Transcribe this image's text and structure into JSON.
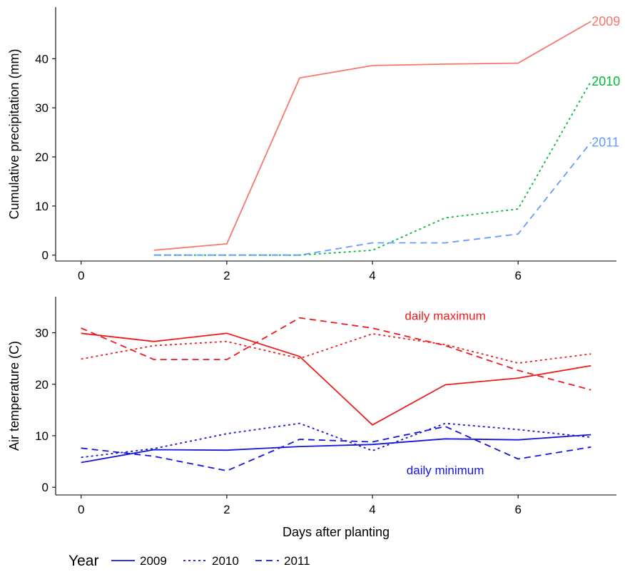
{
  "colors": {
    "precip_2009": "#F8766D",
    "precip_2010": "#00BA38",
    "precip_2011": "#619CFF",
    "temp_max": "#ED1C1C",
    "temp_min": "#1515DD",
    "axis": "#000000",
    "text": "#000000"
  },
  "legend": {
    "title": "Year",
    "entries": [
      {
        "label": "2009",
        "linetype": "solid"
      },
      {
        "label": "2010",
        "linetype": "dotted"
      },
      {
        "label": "2011",
        "linetype": "dashed"
      }
    ]
  },
  "chart_data": [
    {
      "type": "line",
      "ylabel": "Cumulative precipitation (mm)",
      "xlabel": "",
      "xlim": [
        -0.35,
        7.35
      ],
      "ylim": [
        -1.2,
        50.5
      ],
      "xticks": [
        0,
        2,
        4,
        6
      ],
      "yticks": [
        0,
        10,
        20,
        30,
        40
      ],
      "grid": false,
      "series": [
        {
          "name": "2009",
          "color": "#F8766D",
          "linetype": "solid",
          "x": [
            1,
            2,
            3,
            4,
            5,
            6,
            7
          ],
          "y": [
            1.0,
            2.3,
            36.1,
            38.6,
            38.9,
            39.1,
            47.6
          ]
        },
        {
          "name": "2010",
          "color": "#00BA38",
          "linetype": "dotted",
          "x": [
            1,
            2,
            3,
            4,
            5,
            6,
            7
          ],
          "y": [
            0,
            0,
            0,
            1.0,
            7.6,
            9.4,
            35.4
          ]
        },
        {
          "name": "2011",
          "color": "#619CFF",
          "linetype": "dashed",
          "x": [
            1,
            2,
            3,
            4,
            5,
            6,
            7
          ],
          "y": [
            0,
            0,
            0,
            2.5,
            2.5,
            4.3,
            23.0
          ]
        }
      ]
    },
    {
      "type": "line",
      "ylabel": "Air temperature (C)",
      "xlabel": "Days after planting",
      "xlim": [
        -0.35,
        7.35
      ],
      "ylim": [
        -1.5,
        37.0
      ],
      "xticks": [
        0,
        2,
        4,
        6
      ],
      "yticks": [
        0,
        10,
        20,
        30
      ],
      "grid": false,
      "annotations": [
        {
          "text": "daily maximum",
          "x": 5.0,
          "y": 32.5,
          "color": "#ED1C1C"
        },
        {
          "text": "daily minimum",
          "x": 5.0,
          "y": 2.5,
          "color": "#1515DD"
        }
      ],
      "series": [
        {
          "name": "2009",
          "group": "daily maximum",
          "color": "#ED1C1C",
          "linetype": "solid",
          "x": [
            0,
            1,
            2,
            3,
            4,
            5,
            6,
            7
          ],
          "y": [
            29.9,
            28.3,
            29.9,
            25.4,
            12.1,
            19.9,
            21.2,
            23.6
          ]
        },
        {
          "name": "2010",
          "group": "daily maximum",
          "color": "#ED1C1C",
          "linetype": "dotted",
          "x": [
            0,
            1,
            2,
            3,
            4,
            5,
            6,
            7
          ],
          "y": [
            24.9,
            27.5,
            28.3,
            25.0,
            29.8,
            27.7,
            24.1,
            25.9
          ]
        },
        {
          "name": "2011",
          "group": "daily maximum",
          "color": "#ED1C1C",
          "linetype": "dashed",
          "x": [
            0,
            1,
            2,
            3,
            4,
            5,
            6,
            7
          ],
          "y": [
            30.9,
            24.8,
            24.8,
            32.9,
            30.9,
            27.5,
            22.7,
            18.9
          ]
        },
        {
          "name": "2009",
          "group": "daily minimum",
          "color": "#1515DD",
          "linetype": "solid",
          "x": [
            0,
            1,
            2,
            3,
            4,
            5,
            6,
            7
          ],
          "y": [
            4.8,
            7.3,
            7.2,
            7.9,
            8.3,
            9.4,
            9.2,
            10.2
          ]
        },
        {
          "name": "2010",
          "group": "daily minimum",
          "color": "#1515DD",
          "linetype": "dotted",
          "x": [
            0,
            1,
            2,
            3,
            4,
            5,
            6,
            7
          ],
          "y": [
            5.8,
            7.5,
            10.4,
            12.4,
            7.1,
            12.4,
            11.2,
            9.7
          ]
        },
        {
          "name": "2011",
          "group": "daily minimum",
          "color": "#1515DD",
          "linetype": "dashed",
          "x": [
            0,
            1,
            2,
            3,
            4,
            5,
            6,
            7
          ],
          "y": [
            7.6,
            6.0,
            3.2,
            9.3,
            8.8,
            11.8,
            5.5,
            7.8
          ]
        }
      ]
    }
  ]
}
